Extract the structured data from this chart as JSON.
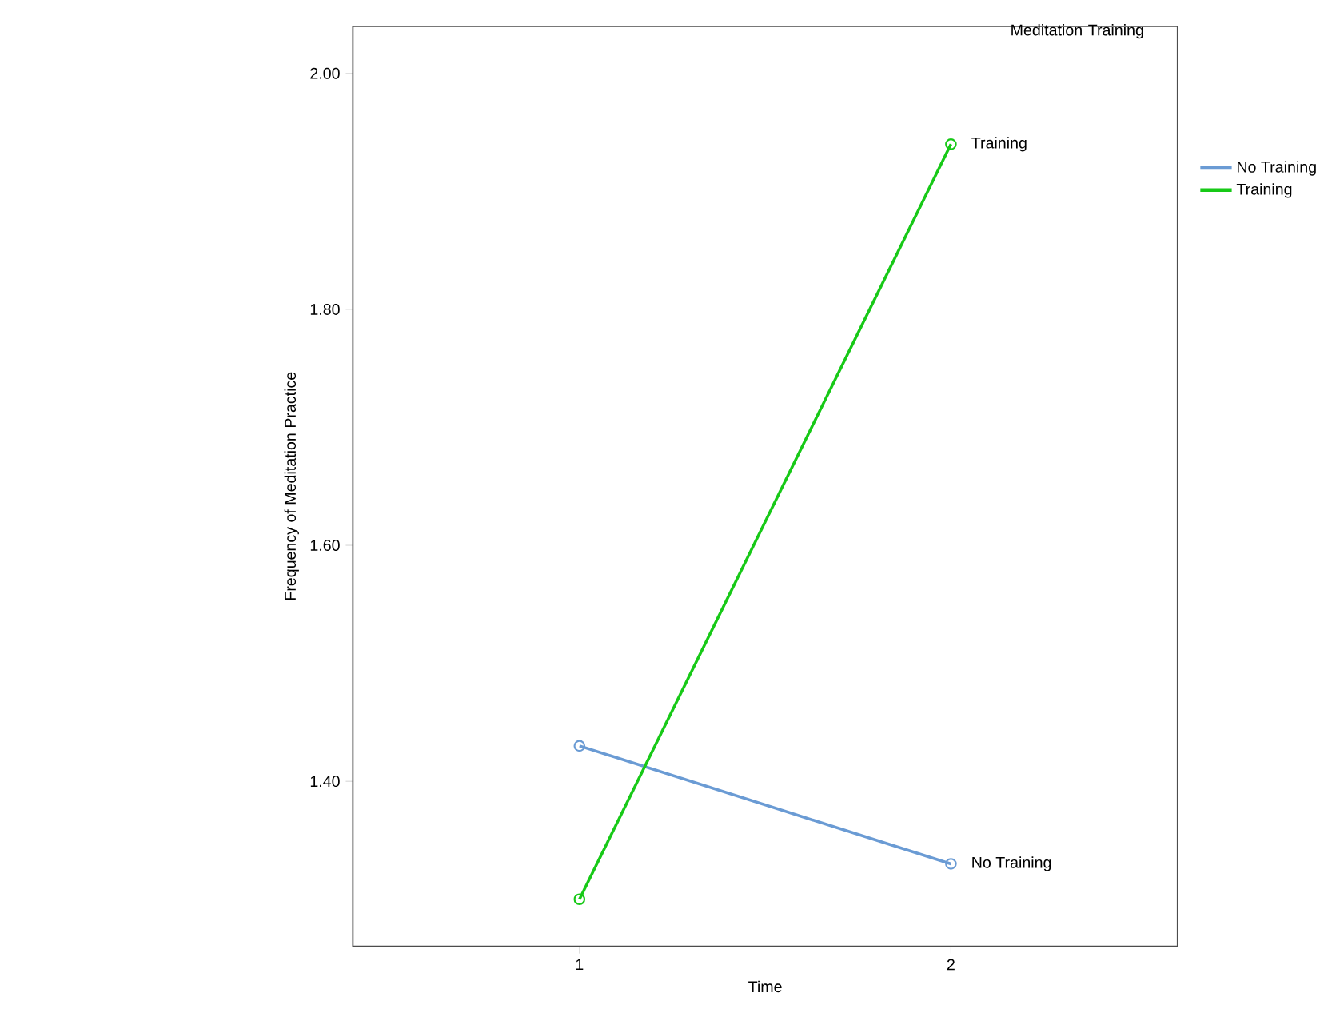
{
  "chart_data": {
    "type": "line",
    "xlabel": "Time",
    "ylabel": "Frequency of Meditation Practice",
    "legend_title": "Meditation Training",
    "categories": [
      "1",
      "2"
    ],
    "series": [
      {
        "name": "No Training",
        "color": "#6a9bd4",
        "values": [
          1.43,
          1.33
        ]
      },
      {
        "name": "Training",
        "color": "#17c917",
        "values": [
          1.3,
          1.94
        ]
      }
    ],
    "ylim": [
      1.26,
      2.04
    ],
    "yticks": [
      {
        "value": 1.4,
        "label": "1.40"
      },
      {
        "value": 1.6,
        "label": "1.60"
      },
      {
        "value": 1.8,
        "label": "1.80"
      },
      {
        "value": 2.0,
        "label": "2.00"
      }
    ],
    "annotations": [
      {
        "text": "Training",
        "x": "2",
        "y": 1.94
      },
      {
        "text": "No Training",
        "x": "2",
        "y": 1.33
      }
    ],
    "marker": "circle",
    "legend": "right",
    "grid": false
  }
}
